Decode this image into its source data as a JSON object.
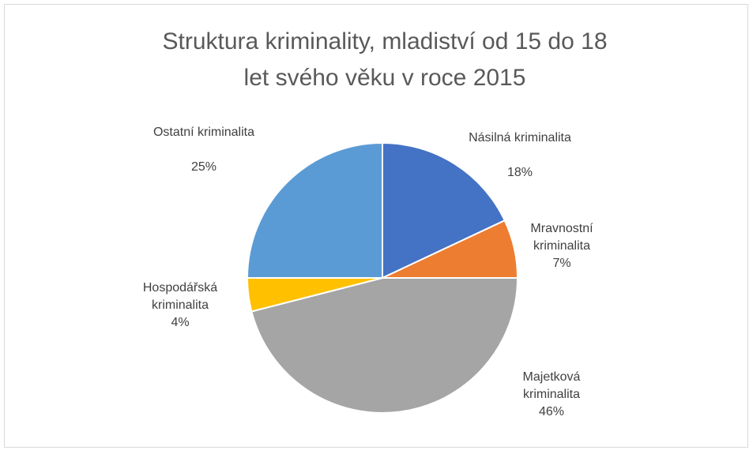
{
  "chart_data": {
    "type": "pie",
    "title": "Struktura kriminality, mladiství od 15 do 18 let svého věku v roce 2015",
    "categories": [
      "Násilná kriminalita",
      "Mravnostní kriminalita",
      "Majetková kriminalita",
      "Hospodářská kriminalita",
      "Ostatní kriminalita"
    ],
    "values": [
      18,
      7,
      46,
      4,
      25
    ],
    "value_labels": [
      "18%",
      "7%",
      "46%",
      "4%",
      "25%"
    ],
    "colors": [
      "#4472c4",
      "#ed7d31",
      "#a5a5a5",
      "#ffc000",
      "#5b9bd5"
    ]
  }
}
